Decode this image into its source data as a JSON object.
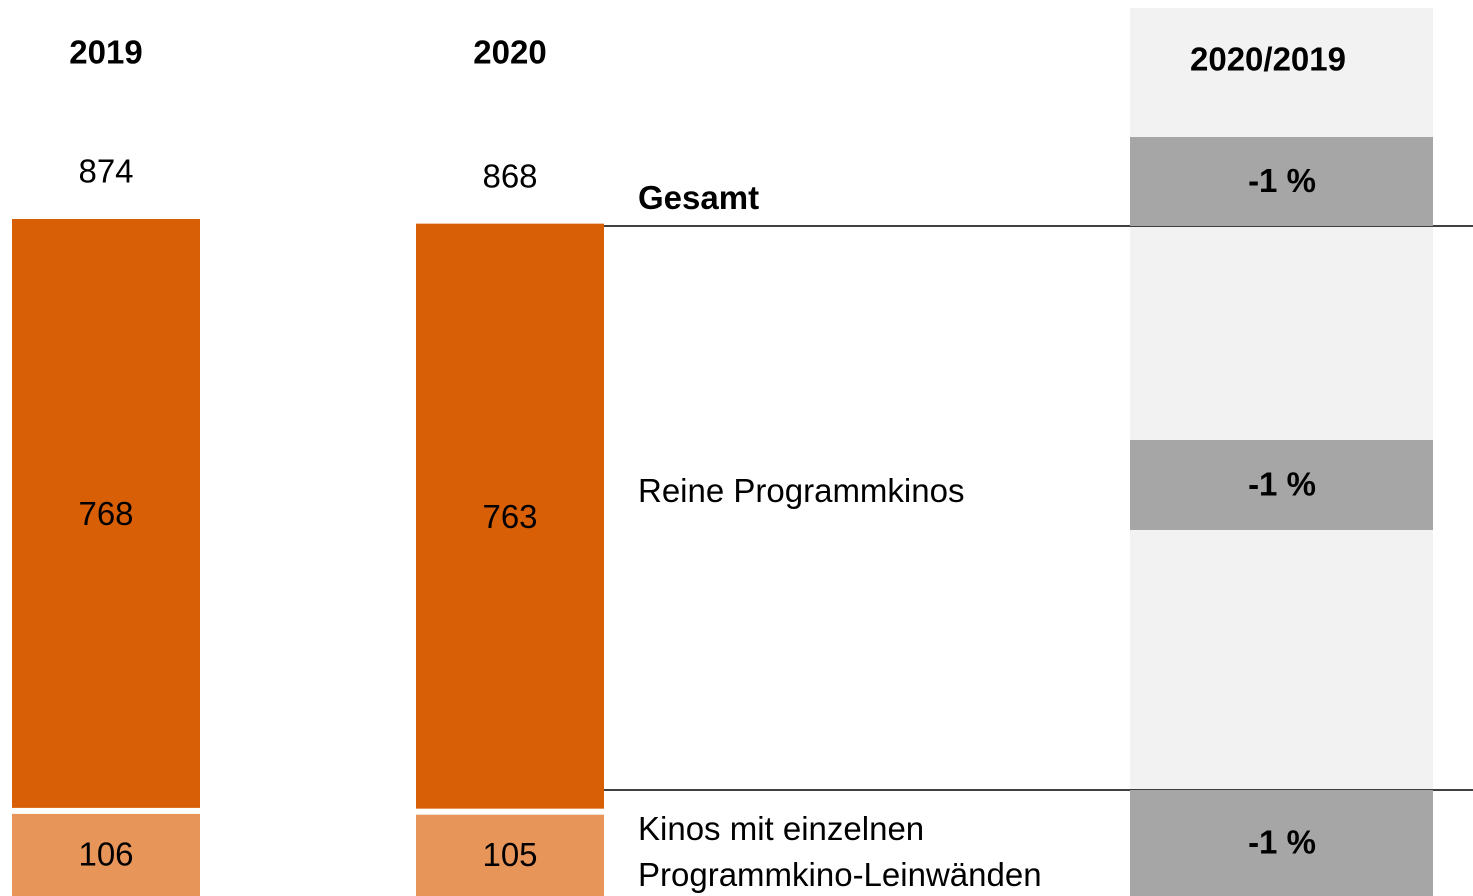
{
  "chart_data": {
    "type": "bar",
    "stacked": true,
    "categories": [
      "2019",
      "2020"
    ],
    "total": {
      "name": "Gesamt",
      "values": [
        874,
        868
      ],
      "change": -1,
      "change_label": "-1 %"
    },
    "series": [
      {
        "name": "Kinos mit einzelnen Programmkino-Leinwänden",
        "color": "#e8955a",
        "values": [
          106,
          105
        ],
        "change": -1,
        "change_label": "-1 %"
      },
      {
        "name": "Reine Programmkinos",
        "color": "#d95f07",
        "values": [
          768,
          763
        ],
        "change": -1,
        "change_label": "-1 %"
      }
    ],
    "change_title": "2020/2019"
  }
}
